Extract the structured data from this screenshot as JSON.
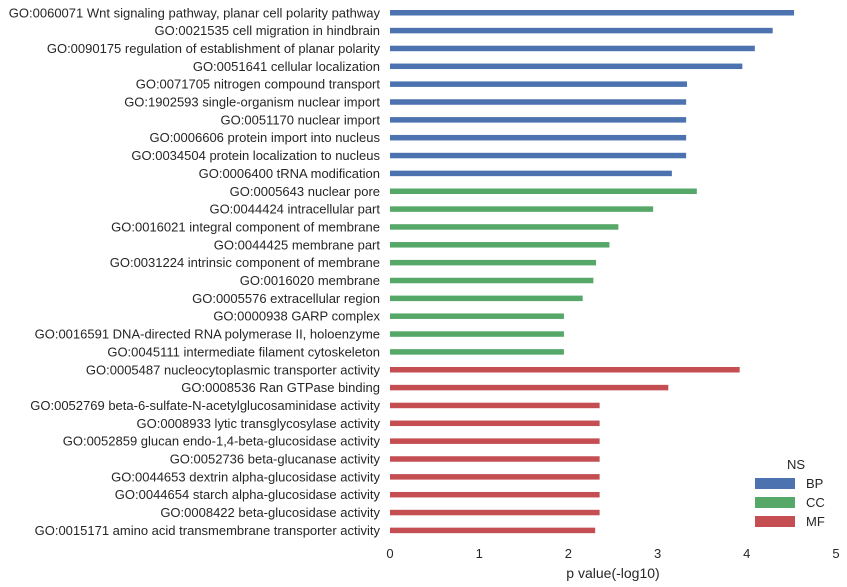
{
  "chart_data": {
    "type": "bar",
    "orientation": "horizontal",
    "xlabel": "p value(-log10)",
    "ylabel": "",
    "xlim": [
      0,
      5
    ],
    "xticks": [
      "0",
      "1",
      "2",
      "3",
      "4",
      "5"
    ],
    "grid": false,
    "legend": {
      "title": "NS",
      "placement": "bottom-right",
      "entries": [
        {
          "name": "BP",
          "color": "#4c72b0"
        },
        {
          "name": "CC",
          "color": "#55a868"
        },
        {
          "name": "MF",
          "color": "#c44e52"
        }
      ]
    },
    "categories": [
      "GO:0060071 Wnt signaling pathway, planar cell polarity pathway",
      "GO:0021535 cell migration in hindbrain",
      "GO:0090175 regulation of establishment of planar polarity",
      "GO:0051641 cellular localization",
      "GO:0071705 nitrogen compound transport",
      "GO:1902593 single-organism nuclear import",
      "GO:0051170 nuclear import",
      "GO:0006606 protein import into nucleus",
      "GO:0034504 protein localization to nucleus",
      "GO:0006400 tRNA modification",
      "GO:0005643 nuclear pore",
      "GO:0044424 intracellular part",
      "GO:0016021 integral component of membrane",
      "GO:0044425 membrane part",
      "GO:0031224 intrinsic component of membrane",
      "GO:0016020 membrane",
      "GO:0005576 extracellular region",
      "GO:0000938 GARP complex",
      "GO:0016591 DNA-directed RNA polymerase II, holoenzyme",
      "GO:0045111 intermediate filament cytoskeleton",
      "GO:0005487 nucleocytoplasmic transporter activity",
      "GO:0008536 Ran GTPase binding",
      "GO:0052769 beta-6-sulfate-N-acetylglucosaminidase activity",
      "GO:0008933 lytic transglycosylase activity",
      "GO:0052859 glucan endo-1,4-beta-glucosidase activity",
      "GO:0052736 beta-glucanase activity",
      "GO:0044653 dextrin alpha-glucosidase activity",
      "GO:0044654 starch alpha-glucosidase activity",
      "GO:0008422 beta-glucosidase activity",
      "GO:0015171 amino acid transmembrane transporter activity"
    ],
    "values": [
      4.53,
      4.29,
      4.09,
      3.95,
      3.33,
      3.32,
      3.32,
      3.32,
      3.32,
      3.16,
      3.44,
      2.95,
      2.56,
      2.46,
      2.31,
      2.28,
      2.16,
      1.95,
      1.95,
      1.95,
      3.92,
      3.12,
      2.35,
      2.35,
      2.35,
      2.35,
      2.35,
      2.35,
      2.35,
      2.3
    ],
    "groups": [
      "BP",
      "BP",
      "BP",
      "BP",
      "BP",
      "BP",
      "BP",
      "BP",
      "BP",
      "BP",
      "CC",
      "CC",
      "CC",
      "CC",
      "CC",
      "CC",
      "CC",
      "CC",
      "CC",
      "CC",
      "MF",
      "MF",
      "MF",
      "MF",
      "MF",
      "MF",
      "MF",
      "MF",
      "MF",
      "MF"
    ]
  }
}
